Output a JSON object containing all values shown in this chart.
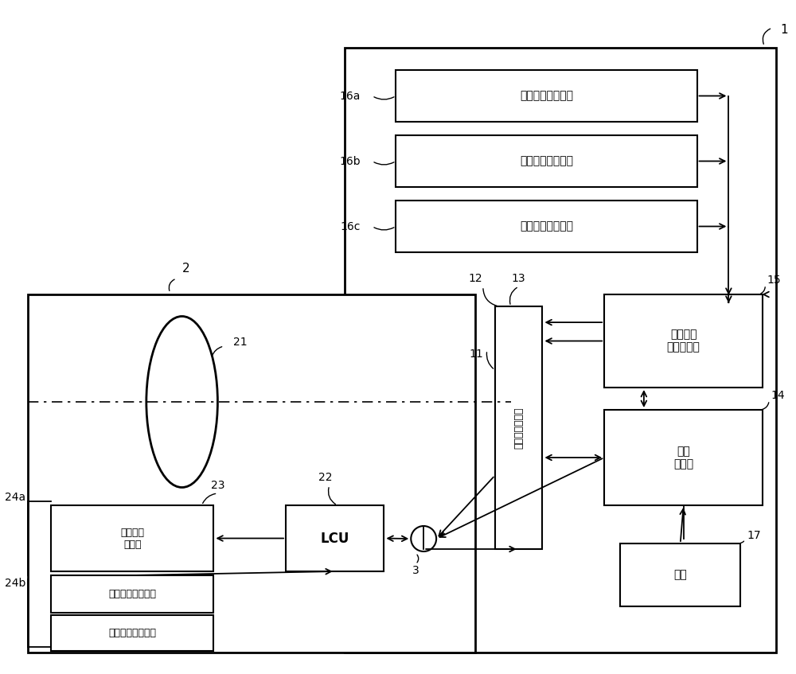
{
  "bg": "#ffffff",
  "lc": "#000000",
  "sensor1": "偏航角速度传感器",
  "sensor2": "俧仰角速度传感器",
  "sensor3": "翻滚角速度传感器",
  "is_mc": "抗动校正\n微型计算机",
  "sys_ctrl": "系统\n控制器",
  "img_drive": "摄像元件驱动部",
  "opt_drive": "光学系统\n驱动部",
  "lcu": "LCU",
  "yaw_lens": "偏航角速度传感器",
  "pitch_lens": "俧仰角速度传感器",
  "sw": "开关",
  "n1": "1",
  "n2": "2",
  "n3": "3",
  "n11": "11",
  "n12": "12",
  "n13": "13",
  "n14": "14",
  "n15": "15",
  "n16a": "16a",
  "n16b": "16b",
  "n16c": "16c",
  "n17": "17",
  "n21": "21",
  "n22": "22",
  "n23": "23",
  "n24a": "24a",
  "n24b": "24b"
}
